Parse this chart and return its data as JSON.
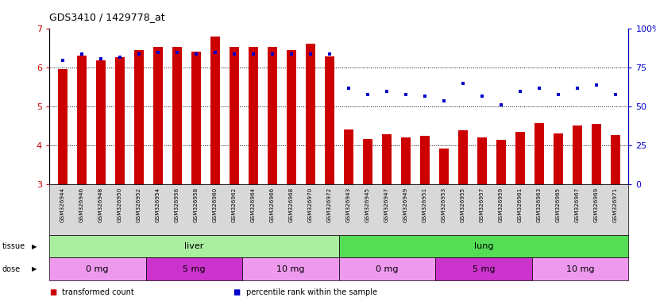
{
  "title": "GDS3410 / 1429778_at",
  "samples": [
    "GSM326944",
    "GSM326946",
    "GSM326948",
    "GSM326950",
    "GSM326952",
    "GSM326954",
    "GSM326956",
    "GSM326958",
    "GSM326960",
    "GSM326962",
    "GSM326964",
    "GSM326966",
    "GSM326968",
    "GSM326970",
    "GSM326972",
    "GSM326943",
    "GSM326945",
    "GSM326947",
    "GSM326949",
    "GSM326951",
    "GSM326953",
    "GSM326955",
    "GSM326957",
    "GSM326959",
    "GSM326961",
    "GSM326963",
    "GSM326965",
    "GSM326967",
    "GSM326969",
    "GSM326971"
  ],
  "bar_heights": [
    5.97,
    6.32,
    6.19,
    6.28,
    6.45,
    6.55,
    6.55,
    6.42,
    6.8,
    6.55,
    6.55,
    6.55,
    6.45,
    6.62,
    6.3,
    4.42,
    4.18,
    4.3,
    4.22,
    4.25,
    3.92,
    4.4,
    4.22,
    4.15,
    4.36,
    4.58,
    4.32,
    4.52,
    4.55,
    4.28
  ],
  "percentile_ranks": [
    80,
    84,
    81,
    82,
    84,
    85,
    85,
    84,
    85,
    84,
    84,
    84,
    84,
    84,
    84,
    62,
    58,
    60,
    58,
    57,
    54,
    65,
    57,
    51,
    60,
    62,
    58,
    62,
    64,
    58
  ],
  "bar_bottom": 3.0,
  "bar_color": "#cc0000",
  "dot_color": "#0000cc",
  "ylim_left": [
    3.0,
    7.0
  ],
  "ylim_right": [
    0,
    100
  ],
  "yticks_left": [
    3,
    4,
    5,
    6,
    7
  ],
  "yticks_right": [
    0,
    25,
    50,
    75,
    100
  ],
  "yticklabels_right": [
    "0",
    "25",
    "50",
    "75",
    "100%"
  ],
  "tissue_groups": [
    {
      "label": "liver",
      "start": 0,
      "end": 15,
      "color": "#aaeea0"
    },
    {
      "label": "lung",
      "start": 15,
      "end": 30,
      "color": "#55dd55"
    }
  ],
  "dose_groups": [
    {
      "label": "0 mg",
      "start": 0,
      "end": 5,
      "color": "#ee99ee"
    },
    {
      "label": "5 mg",
      "start": 5,
      "end": 10,
      "color": "#cc33cc"
    },
    {
      "label": "10 mg",
      "start": 10,
      "end": 15,
      "color": "#ee99ee"
    },
    {
      "label": "0 mg",
      "start": 15,
      "end": 20,
      "color": "#ee99ee"
    },
    {
      "label": "5 mg",
      "start": 20,
      "end": 25,
      "color": "#cc33cc"
    },
    {
      "label": "10 mg",
      "start": 25,
      "end": 30,
      "color": "#ee99ee"
    }
  ],
  "legend_items": [
    {
      "label": "transformed count",
      "color": "#cc0000"
    },
    {
      "label": "percentile rank within the sample",
      "color": "#0000cc"
    }
  ],
  "tissue_label": "tissue",
  "dose_label": "dose",
  "bar_width": 0.5,
  "axis_color_left": "#cc0000",
  "axis_color_right": "#0000cc",
  "plot_bg": "#ffffff",
  "tick_bg": "#d8d8d8"
}
